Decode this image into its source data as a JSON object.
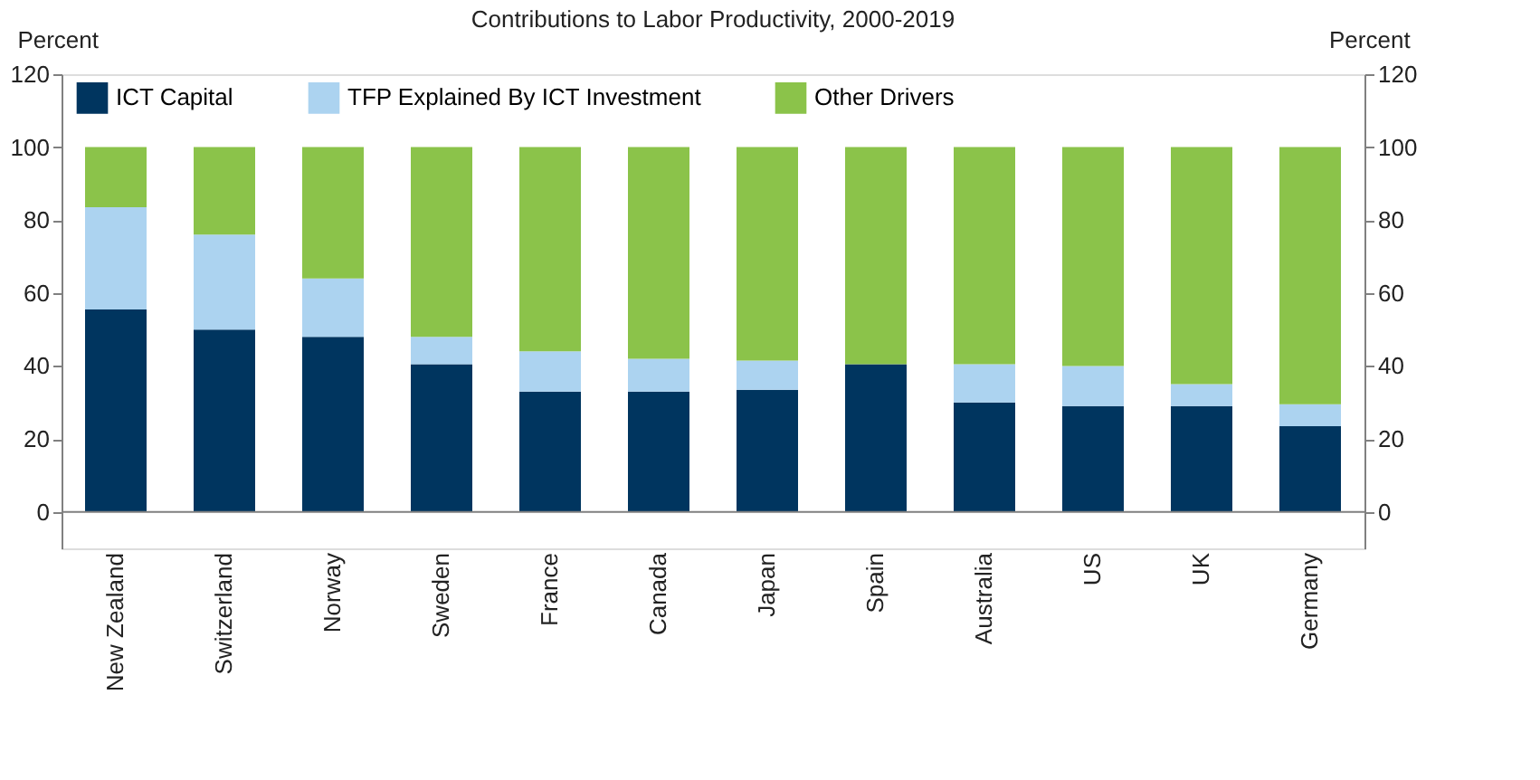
{
  "chart_data": {
    "type": "bar",
    "stacked": true,
    "title": "Contributions to Labor Productivity, 2000-2019",
    "ylabel": "Percent",
    "y2label": "Percent",
    "categories": [
      "New Zealand",
      "Switzerland",
      "Norway",
      "Sweden",
      "France",
      "Canada",
      "Japan",
      "Spain",
      "Australia",
      "US",
      "UK",
      "Germany"
    ],
    "series": [
      {
        "name": "ICT Capital",
        "color": "#00355f",
        "values": [
          55.5,
          50,
          48,
          40.5,
          33,
          33,
          33.5,
          40.5,
          30,
          29,
          29,
          23.5
        ]
      },
      {
        "name": "TFP Explained By ICT Investment",
        "color": "#acd3f0",
        "values": [
          28,
          26,
          16,
          7.5,
          11,
          9,
          8,
          0,
          10.5,
          11,
          6,
          6
        ]
      },
      {
        "name": "Other Drivers",
        "color": "#8bc34a",
        "values": [
          16.5,
          24,
          36,
          52,
          56,
          58,
          58.5,
          59.5,
          59.5,
          60,
          65,
          70.5
        ]
      }
    ],
    "ylim": [
      -10,
      120
    ],
    "yticks": [
      0,
      20,
      40,
      60,
      80,
      100,
      120
    ],
    "y2lim": [
      -10,
      120
    ],
    "y2ticks": [
      0,
      20,
      40,
      60,
      80,
      100,
      120
    ],
    "ref_lines": [
      {
        "axis": "y",
        "value": 0,
        "color": "#808080"
      }
    ],
    "legend": "top",
    "grid": false
  }
}
